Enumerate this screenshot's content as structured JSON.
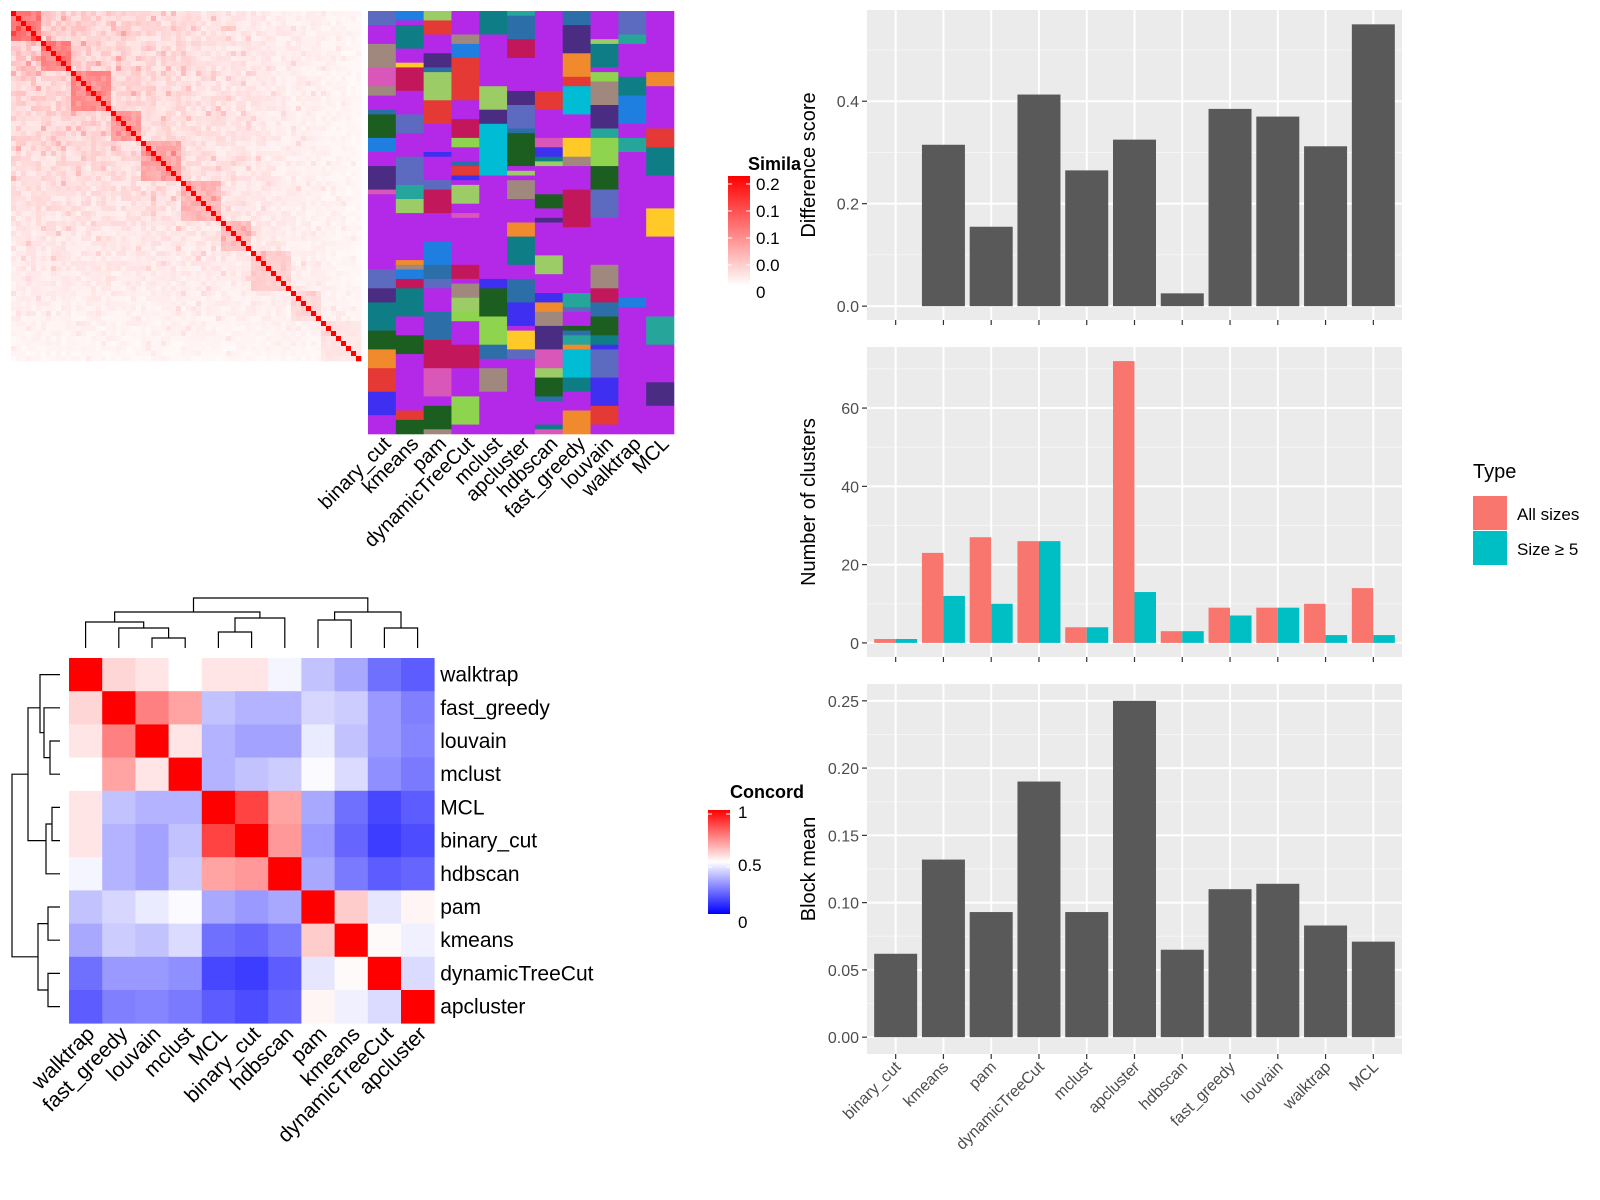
{
  "methods_order": [
    "binary_cut",
    "kmeans",
    "pam",
    "dynamicTreeCut",
    "mclust",
    "apcluster",
    "hdbscan",
    "fast_greedy",
    "louvain",
    "walktrap",
    "MCL"
  ],
  "similarity_legend": {
    "title": "Simila",
    "ticks": [
      "0.2",
      "0.1",
      "0.1",
      "0.0",
      "0"
    ]
  },
  "concordance_legend": {
    "title": "Concord",
    "ticks": [
      "1",
      "0.5",
      "0"
    ]
  },
  "concordance_order": [
    "walktrap",
    "fast_greedy",
    "louvain",
    "mclust",
    "MCL",
    "binary_cut",
    "hdbscan",
    "pam",
    "kmeans",
    "dynamicTreeCut",
    "apcluster"
  ],
  "type_legend": {
    "title": "Type",
    "items": [
      {
        "label": "All sizes",
        "color": "#F8766D"
      },
      {
        "label": "Size ≥ 5",
        "color": "#00BFC4"
      }
    ]
  },
  "chart_data": [
    {
      "type": "heatmap",
      "name": "similarity-matrix",
      "legend_title": "Simila",
      "color_range": [
        "#ffffff",
        "#ff0000"
      ],
      "description_values": "diagonal-dominant sparse similarity, max ≈ 0.2"
    },
    {
      "type": "heatmap",
      "name": "cluster-assignment",
      "columns": [
        "binary_cut",
        "kmeans",
        "pam",
        "dynamicTreeCut",
        "mclust",
        "apcluster",
        "hdbscan",
        "fast_greedy",
        "louvain",
        "walktrap",
        "MCL"
      ]
    },
    {
      "type": "heatmap",
      "name": "concordance",
      "rows": [
        "walktrap",
        "fast_greedy",
        "louvain",
        "mclust",
        "MCL",
        "binary_cut",
        "hdbscan",
        "pam",
        "kmeans",
        "dynamicTreeCut",
        "apcluster"
      ],
      "cols": [
        "walktrap",
        "fast_greedy",
        "louvain",
        "mclust",
        "MCL",
        "binary_cut",
        "hdbscan",
        "pam",
        "kmeans",
        "dynamicTreeCut",
        "apcluster"
      ],
      "values": [
        [
          1.0,
          0.58,
          0.55,
          0.5,
          0.55,
          0.55,
          0.48,
          0.38,
          0.33,
          0.22,
          0.18
        ],
        [
          0.58,
          1.0,
          0.75,
          0.68,
          0.38,
          0.35,
          0.35,
          0.42,
          0.4,
          0.3,
          0.25
        ],
        [
          0.55,
          0.75,
          1.0,
          0.55,
          0.35,
          0.32,
          0.32,
          0.46,
          0.38,
          0.3,
          0.26
        ],
        [
          0.5,
          0.68,
          0.55,
          1.0,
          0.35,
          0.38,
          0.4,
          0.49,
          0.43,
          0.28,
          0.24
        ],
        [
          0.55,
          0.38,
          0.35,
          0.35,
          1.0,
          0.87,
          0.68,
          0.33,
          0.22,
          0.14,
          0.18
        ],
        [
          0.55,
          0.35,
          0.32,
          0.38,
          0.87,
          1.0,
          0.7,
          0.3,
          0.2,
          0.12,
          0.15
        ],
        [
          0.48,
          0.35,
          0.32,
          0.4,
          0.68,
          0.7,
          1.0,
          0.33,
          0.24,
          0.18,
          0.2
        ],
        [
          0.38,
          0.42,
          0.46,
          0.49,
          0.33,
          0.3,
          0.33,
          1.0,
          0.6,
          0.45,
          0.52
        ],
        [
          0.33,
          0.4,
          0.38,
          0.43,
          0.22,
          0.2,
          0.24,
          0.6,
          1.0,
          0.51,
          0.47
        ],
        [
          0.22,
          0.3,
          0.3,
          0.28,
          0.14,
          0.12,
          0.18,
          0.45,
          0.51,
          1.0,
          0.43
        ],
        [
          0.18,
          0.25,
          0.26,
          0.24,
          0.18,
          0.15,
          0.2,
          0.52,
          0.47,
          0.43,
          1.0
        ]
      ],
      "legend_title": "Concord",
      "range": [
        0,
        1
      ]
    },
    {
      "type": "bar",
      "name": "difference-score",
      "categories": [
        "binary_cut",
        "kmeans",
        "pam",
        "dynamicTreeCut",
        "mclust",
        "apcluster",
        "hdbscan",
        "fast_greedy",
        "louvain",
        "walktrap",
        "MCL"
      ],
      "values": [
        0.0,
        0.315,
        0.155,
        0.413,
        0.265,
        0.325,
        0.025,
        0.385,
        0.37,
        0.312,
        0.55
      ],
      "ylabel": "Difference score",
      "ylim": [
        -0.027,
        0.578
      ],
      "yticks": [
        0.0,
        0.2,
        0.4
      ]
    },
    {
      "type": "bar",
      "name": "number-of-clusters",
      "categories": [
        "binary_cut",
        "kmeans",
        "pam",
        "dynamicTreeCut",
        "mclust",
        "apcluster",
        "hdbscan",
        "fast_greedy",
        "louvain",
        "walktrap",
        "MCL"
      ],
      "series": [
        {
          "name": "All sizes",
          "values": [
            1,
            23,
            27,
            26,
            4,
            72,
            3,
            9,
            9,
            10,
            14
          ]
        },
        {
          "name": "Size ≥ 5",
          "values": [
            1,
            12,
            10,
            26,
            4,
            13,
            3,
            7,
            9,
            2,
            2
          ]
        }
      ],
      "ylabel": "Number of clusters",
      "ylim": [
        -3.6,
        75.6
      ],
      "yticks": [
        0,
        20,
        40,
        60
      ]
    },
    {
      "type": "bar",
      "name": "block-mean",
      "categories": [
        "binary_cut",
        "kmeans",
        "pam",
        "dynamicTreeCut",
        "mclust",
        "apcluster",
        "hdbscan",
        "fast_greedy",
        "louvain",
        "walktrap",
        "MCL"
      ],
      "values": [
        0.062,
        0.132,
        0.093,
        0.19,
        0.093,
        0.25,
        0.065,
        0.11,
        0.114,
        0.083,
        0.071
      ],
      "ylabel": "Block mean",
      "ylim": [
        -0.0125,
        0.2625
      ],
      "yticks": [
        0.0,
        0.05,
        0.1,
        0.15,
        0.2,
        0.25
      ],
      "ytick_labels": [
        "0.00",
        "0.05",
        "0.10",
        "0.15",
        "0.20",
        "0.25"
      ]
    }
  ]
}
